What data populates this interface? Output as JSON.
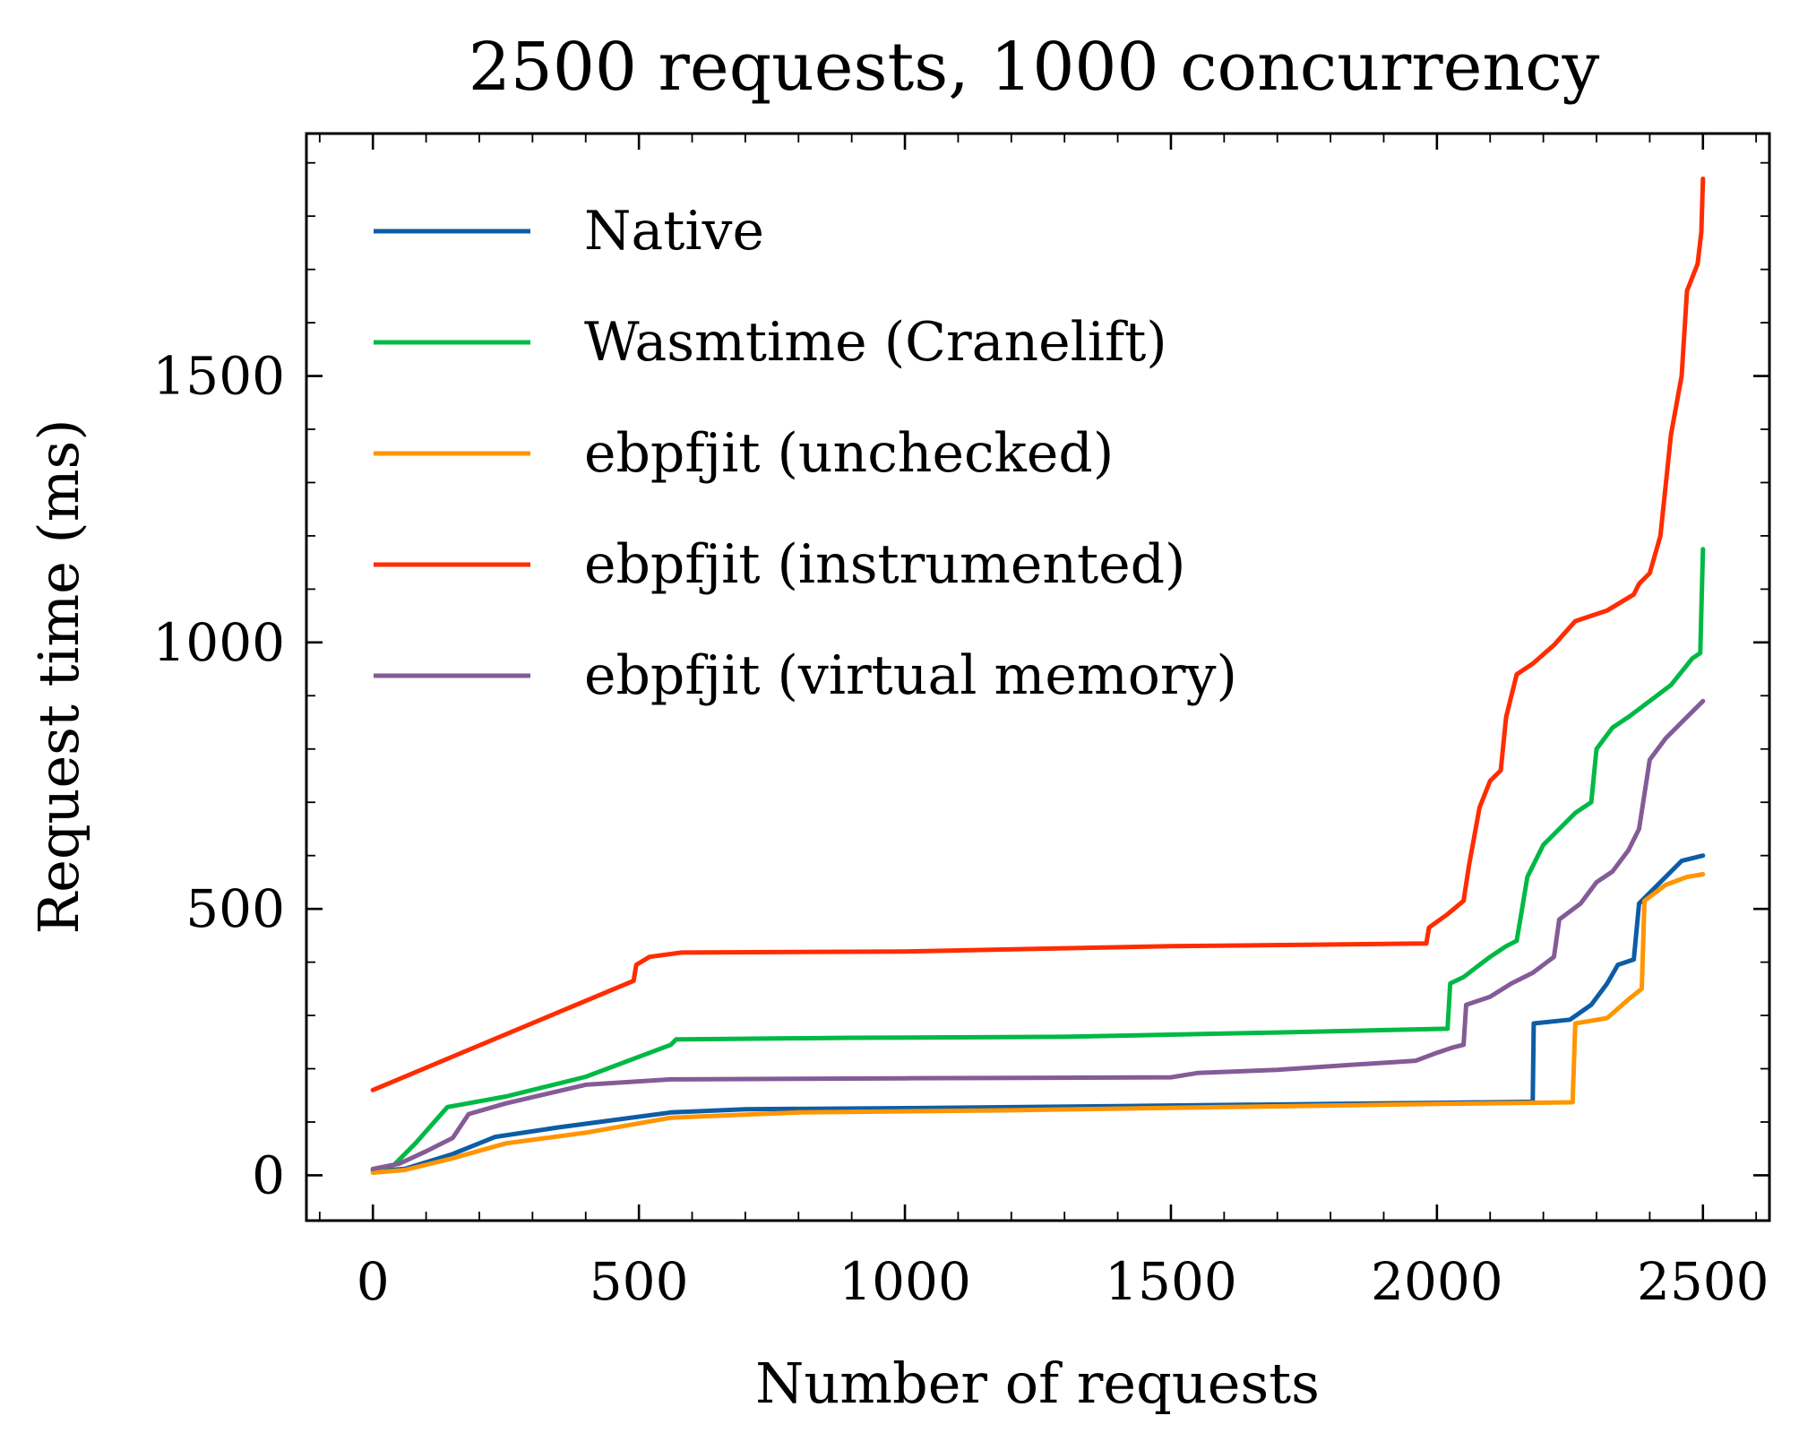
{
  "chart_data": {
    "type": "line",
    "title": "2500 requests, 1000 concurrency",
    "xlabel": "Number of requests",
    "ylabel": "Request time (ms)",
    "xlim": [
      -125,
      2625
    ],
    "ylim": [
      -85,
      1955
    ],
    "xticks": [
      0,
      500,
      1000,
      1500,
      2000,
      2500
    ],
    "yticks": [
      0,
      500,
      1000,
      1500
    ],
    "x_minor_step": 100,
    "y_minor_step": 100,
    "grid": false,
    "legend_position": "upper-left",
    "series": [
      {
        "name": "Native",
        "color": "#0C5DA5",
        "points": [
          [
            0,
            8
          ],
          [
            60,
            12
          ],
          [
            150,
            40
          ],
          [
            230,
            72
          ],
          [
            350,
            90
          ],
          [
            560,
            118
          ],
          [
            700,
            124
          ],
          [
            1000,
            126
          ],
          [
            1400,
            130
          ],
          [
            2000,
            136
          ],
          [
            2180,
            138
          ],
          [
            2182,
            285
          ],
          [
            2250,
            292
          ],
          [
            2290,
            320
          ],
          [
            2320,
            360
          ],
          [
            2340,
            395
          ],
          [
            2370,
            405
          ],
          [
            2380,
            510
          ],
          [
            2420,
            550
          ],
          [
            2460,
            590
          ],
          [
            2500,
            600
          ]
        ]
      },
      {
        "name": "Wasmtime (Cranelift)",
        "color": "#00B945",
        "points": [
          [
            0,
            10
          ],
          [
            40,
            20
          ],
          [
            80,
            60
          ],
          [
            140,
            128
          ],
          [
            250,
            148
          ],
          [
            400,
            185
          ],
          [
            560,
            245
          ],
          [
            570,
            255
          ],
          [
            900,
            258
          ],
          [
            1300,
            260
          ],
          [
            1700,
            268
          ],
          [
            2020,
            275
          ],
          [
            2025,
            360
          ],
          [
            2050,
            372
          ],
          [
            2080,
            395
          ],
          [
            2100,
            410
          ],
          [
            2130,
            430
          ],
          [
            2150,
            440
          ],
          [
            2160,
            500
          ],
          [
            2170,
            560
          ],
          [
            2200,
            620
          ],
          [
            2230,
            650
          ],
          [
            2260,
            680
          ],
          [
            2290,
            700
          ],
          [
            2300,
            800
          ],
          [
            2330,
            840
          ],
          [
            2360,
            860
          ],
          [
            2400,
            890
          ],
          [
            2440,
            920
          ],
          [
            2480,
            970
          ],
          [
            2495,
            980
          ],
          [
            2500,
            1175
          ]
        ]
      },
      {
        "name": "ebpfjit (unchecked)",
        "color": "#FF9500",
        "points": [
          [
            0,
            5
          ],
          [
            60,
            10
          ],
          [
            150,
            32
          ],
          [
            250,
            60
          ],
          [
            400,
            80
          ],
          [
            560,
            108
          ],
          [
            800,
            118
          ],
          [
            1200,
            122
          ],
          [
            1600,
            128
          ],
          [
            2000,
            134
          ],
          [
            2255,
            137
          ],
          [
            2260,
            285
          ],
          [
            2320,
            295
          ],
          [
            2360,
            330
          ],
          [
            2385,
            350
          ],
          [
            2390,
            515
          ],
          [
            2430,
            545
          ],
          [
            2470,
            560
          ],
          [
            2500,
            565
          ]
        ]
      },
      {
        "name": "ebpfjit (instrumented)",
        "color": "#FF2C00",
        "points": [
          [
            0,
            160
          ],
          [
            490,
            365
          ],
          [
            495,
            395
          ],
          [
            520,
            410
          ],
          [
            580,
            418
          ],
          [
            1000,
            420
          ],
          [
            1500,
            430
          ],
          [
            1980,
            435
          ],
          [
            1985,
            465
          ],
          [
            2020,
            490
          ],
          [
            2050,
            515
          ],
          [
            2060,
            580
          ],
          [
            2080,
            690
          ],
          [
            2100,
            740
          ],
          [
            2120,
            760
          ],
          [
            2130,
            860
          ],
          [
            2150,
            940
          ],
          [
            2180,
            960
          ],
          [
            2220,
            995
          ],
          [
            2260,
            1040
          ],
          [
            2320,
            1060
          ],
          [
            2370,
            1090
          ],
          [
            2380,
            1110
          ],
          [
            2400,
            1130
          ],
          [
            2420,
            1200
          ],
          [
            2440,
            1390
          ],
          [
            2460,
            1500
          ],
          [
            2470,
            1660
          ],
          [
            2490,
            1710
          ],
          [
            2497,
            1770
          ],
          [
            2500,
            1870
          ]
        ]
      },
      {
        "name": "ebpfjit (virtual memory)",
        "color": "#845B97",
        "points": [
          [
            0,
            12
          ],
          [
            50,
            22
          ],
          [
            100,
            45
          ],
          [
            150,
            70
          ],
          [
            180,
            115
          ],
          [
            250,
            135
          ],
          [
            400,
            170
          ],
          [
            560,
            180
          ],
          [
            1000,
            182
          ],
          [
            1500,
            184
          ],
          [
            1550,
            192
          ],
          [
            1700,
            198
          ],
          [
            1850,
            208
          ],
          [
            1960,
            215
          ],
          [
            2000,
            230
          ],
          [
            2030,
            240
          ],
          [
            2050,
            245
          ],
          [
            2055,
            320
          ],
          [
            2100,
            335
          ],
          [
            2140,
            360
          ],
          [
            2180,
            380
          ],
          [
            2220,
            410
          ],
          [
            2230,
            480
          ],
          [
            2270,
            510
          ],
          [
            2300,
            550
          ],
          [
            2330,
            570
          ],
          [
            2360,
            610
          ],
          [
            2380,
            650
          ],
          [
            2400,
            780
          ],
          [
            2430,
            820
          ],
          [
            2460,
            850
          ],
          [
            2500,
            890
          ]
        ]
      }
    ]
  }
}
